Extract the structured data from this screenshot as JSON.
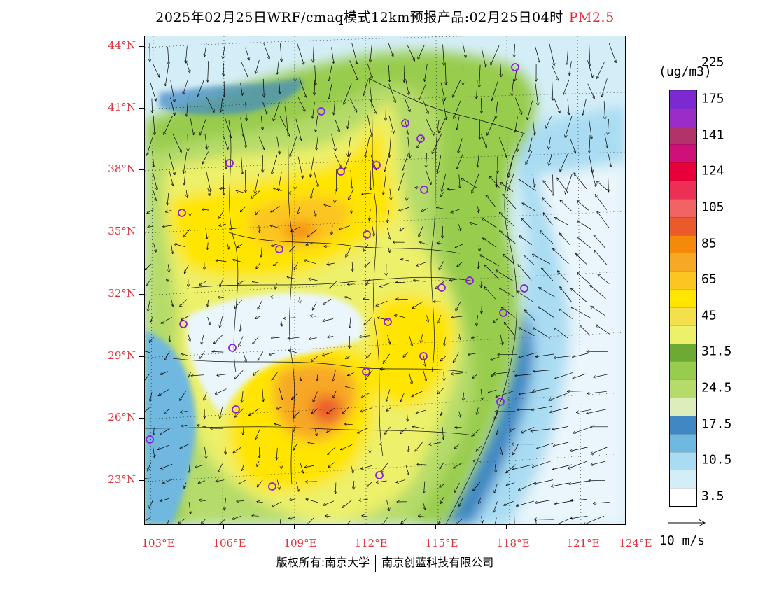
{
  "header": {
    "title": "2025年02月25日WRF/cmaq模式12km预报产品:02月25日04时",
    "variable": "PM2.5"
  },
  "map": {
    "lat_labels": [
      "44°N",
      "41°N",
      "38°N",
      "35°N",
      "32°N",
      "29°N",
      "26°N",
      "23°N"
    ],
    "lon_labels": [
      "103°E",
      "106°E",
      "109°E",
      "112°E",
      "115°E",
      "118°E",
      "121°E",
      "124°E"
    ]
  },
  "legend": {
    "unit": "(ug/m3)",
    "labels": [
      "3.5",
      "10.5",
      "17.5",
      "24.5",
      "31.5",
      "45",
      "65",
      "85",
      "105",
      "124",
      "141",
      "175",
      "225"
    ],
    "colors": [
      "#ffffff",
      "#d4eef8",
      "#a9dcf2",
      "#6fb8e0",
      "#3f88c4",
      "#dceebb",
      "#b5db6b",
      "#98cc4e",
      "#6daa33",
      "#ecf06a",
      "#f4e04a",
      "#ffe500",
      "#fbc522",
      "#f7a825",
      "#f58a0a",
      "#eb5a2a",
      "#f26464",
      "#ee2f55",
      "#e8003a",
      "#d0107a",
      "#b2336a",
      "#9b2cc6",
      "#7a2ad0"
    ]
  },
  "wind_scale": {
    "label": "10 m/s"
  },
  "footer": {
    "copyright": "版权所有:南京大学",
    "company": "南京创蓝科技有限公司"
  }
}
